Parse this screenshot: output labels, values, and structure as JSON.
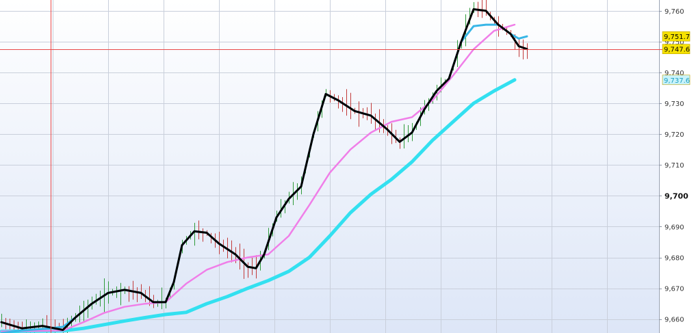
{
  "chart_data": {
    "type": "line",
    "title": "",
    "xlabel": "",
    "ylabel": "",
    "ylim": [
      9655.5,
      9763.5
    ],
    "y_ticks": [
      {
        "value": 9660,
        "label": "9,660",
        "major": false
      },
      {
        "value": 9670,
        "label": "9,670",
        "major": false
      },
      {
        "value": 9680,
        "label": "9,680",
        "major": false
      },
      {
        "value": 9690,
        "label": "9,690",
        "major": false
      },
      {
        "value": 9700,
        "label": "9,700",
        "major": true
      },
      {
        "value": 9710,
        "label": "9,710",
        "major": false
      },
      {
        "value": 9720,
        "label": "9,720",
        "major": false
      },
      {
        "value": 9730,
        "label": "9,730",
        "major": false
      },
      {
        "value": 9740,
        "label": "9,740",
        "major": false
      },
      {
        "value": 9750,
        "label": "9,750",
        "major": false
      },
      {
        "value": 9760,
        "label": "9,760",
        "major": false
      }
    ],
    "grid": true,
    "x_count": 130,
    "colors": {
      "price_ma": "#000000",
      "fast_ma": "#38b6e6",
      "medium_ma": "#f07ee8",
      "slow_ma": "#33e0f0",
      "bar_up": "#2e9a3a",
      "bar_down": "#c23a3a",
      "crosshair": "#e94a4a",
      "grid": "#c9cfdb",
      "bg_top": "#ffffff",
      "bg_bottom": "#dde6f7"
    },
    "crosshair": {
      "x_index": 12,
      "y": 9747.6
    },
    "price_tags": [
      {
        "value": 9751.7,
        "label": "9,751.7",
        "bg": "#f6e200",
        "color": "#000000"
      },
      {
        "value": 9747.6,
        "label": "9,747.6",
        "bg": "#f6e200",
        "color": "#000000"
      },
      {
        "value": 9737.6,
        "label": "9,737.6",
        "bg": "#c9f3fb",
        "color": "#1a9fc0"
      }
    ],
    "series": [
      {
        "key": "slow_ma",
        "values": [
          [
            0,
            9656.0
          ],
          [
            15,
            9656.2
          ],
          [
            20,
            9657.0
          ],
          [
            25,
            9658.2
          ],
          [
            30,
            9659.4
          ],
          [
            35,
            9660.5
          ],
          [
            40,
            9661.5
          ],
          [
            45,
            9662.2
          ],
          [
            50,
            9665.0
          ],
          [
            55,
            9667.3
          ],
          [
            60,
            9670.0
          ],
          [
            65,
            9672.5
          ],
          [
            70,
            9675.5
          ],
          [
            75,
            9680.0
          ],
          [
            80,
            9687.0
          ],
          [
            85,
            9694.5
          ],
          [
            90,
            9700.5
          ],
          [
            95,
            9705.3
          ],
          [
            100,
            9711.0
          ],
          [
            105,
            9718.0
          ],
          [
            110,
            9724.0
          ],
          [
            115,
            9730.0
          ],
          [
            120,
            9734.0
          ],
          [
            125,
            9737.6
          ]
        ]
      },
      {
        "key": "medium_ma",
        "values": [
          [
            0,
            9656.0
          ],
          [
            15,
            9656.3
          ],
          [
            20,
            9659.0
          ],
          [
            25,
            9662.0
          ],
          [
            30,
            9664.0
          ],
          [
            35,
            9665.0
          ],
          [
            40,
            9665.5
          ],
          [
            45,
            9671.5
          ],
          [
            50,
            9676.0
          ],
          [
            55,
            9678.5
          ],
          [
            60,
            9680.0
          ],
          [
            65,
            9681.0
          ],
          [
            70,
            9687.0
          ],
          [
            75,
            9697.0
          ],
          [
            80,
            9707.5
          ],
          [
            85,
            9715.0
          ],
          [
            90,
            9720.5
          ],
          [
            95,
            9724.0
          ],
          [
            100,
            9725.5
          ],
          [
            105,
            9731.0
          ],
          [
            110,
            9739.0
          ],
          [
            115,
            9747.5
          ],
          [
            120,
            9753.5
          ],
          [
            125,
            9755.5
          ]
        ]
      },
      {
        "key": "fast_ma",
        "values": [
          [
            0,
            9655.5
          ],
          [
            5,
            9656.3
          ],
          [
            10,
            9656.8
          ],
          [
            15,
            9657.5
          ],
          [
            18,
            9660.5
          ],
          [
            22,
            9665.0
          ],
          [
            26,
            9668.5
          ],
          [
            30,
            9669.5
          ],
          [
            34,
            9668.5
          ],
          [
            37,
            9665.5
          ],
          [
            40,
            9665.5
          ],
          [
            42,
            9672.0
          ],
          [
            44,
            9684.0
          ],
          [
            47,
            9688.5
          ],
          [
            50,
            9688.0
          ],
          [
            53,
            9684.5
          ],
          [
            57,
            9681.0
          ],
          [
            60,
            9677.0
          ],
          [
            62,
            9676.5
          ],
          [
            64,
            9681.0
          ],
          [
            67,
            9693.0
          ],
          [
            70,
            9699.0
          ],
          [
            73,
            9703.0
          ],
          [
            76,
            9720.0
          ],
          [
            79,
            9733.0
          ],
          [
            82,
            9731.0
          ],
          [
            86,
            9727.5
          ],
          [
            90,
            9726.0
          ],
          [
            94,
            9721.5
          ],
          [
            97,
            9717.5
          ],
          [
            100,
            9720.5
          ],
          [
            103,
            9728.0
          ],
          [
            106,
            9734.0
          ],
          [
            109,
            9738.0
          ],
          [
            112,
            9750.0
          ],
          [
            115,
            9755.0
          ],
          [
            118,
            9755.5
          ],
          [
            121,
            9755.5
          ],
          [
            124,
            9752.5
          ],
          [
            126,
            9751.0
          ],
          [
            128,
            9751.7
          ]
        ]
      },
      {
        "key": "price_ma",
        "values": [
          [
            0,
            9659.0
          ],
          [
            5,
            9657.0
          ],
          [
            10,
            9657.8
          ],
          [
            15,
            9656.5
          ],
          [
            18,
            9660.5
          ],
          [
            22,
            9665.0
          ],
          [
            26,
            9668.5
          ],
          [
            30,
            9669.5
          ],
          [
            34,
            9668.5
          ],
          [
            37,
            9665.5
          ],
          [
            40,
            9665.5
          ],
          [
            42,
            9672.0
          ],
          [
            44,
            9684.0
          ],
          [
            47,
            9688.5
          ],
          [
            50,
            9688.0
          ],
          [
            53,
            9684.5
          ],
          [
            57,
            9681.0
          ],
          [
            60,
            9677.0
          ],
          [
            62,
            9676.5
          ],
          [
            64,
            9681.0
          ],
          [
            67,
            9693.0
          ],
          [
            70,
            9699.0
          ],
          [
            73,
            9703.0
          ],
          [
            76,
            9720.0
          ],
          [
            79,
            9733.0
          ],
          [
            82,
            9731.0
          ],
          [
            86,
            9727.5
          ],
          [
            90,
            9726.0
          ],
          [
            94,
            9721.5
          ],
          [
            97,
            9717.5
          ],
          [
            100,
            9720.5
          ],
          [
            103,
            9728.0
          ],
          [
            106,
            9734.0
          ],
          [
            109,
            9738.0
          ],
          [
            112,
            9750.0
          ],
          [
            115,
            9760.5
          ],
          [
            118,
            9760.0
          ],
          [
            121,
            9755.5
          ],
          [
            124,
            9752.5
          ],
          [
            126,
            9748.5
          ],
          [
            128,
            9747.6
          ]
        ]
      }
    ]
  }
}
